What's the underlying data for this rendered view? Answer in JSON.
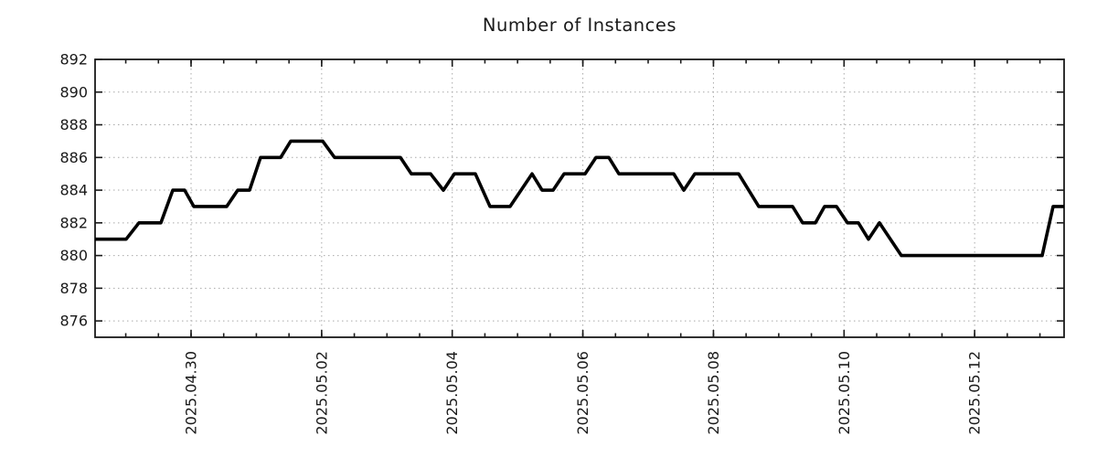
{
  "page": {
    "title": "Number of Instances"
  },
  "chart_data": {
    "type": "line",
    "title": "Number of Instances",
    "grid": "dotted",
    "legend": "none",
    "x_axis": {
      "unit": "date",
      "domain_days": [
        0,
        14.84
      ],
      "major_ticks": [
        {
          "day": 1.47,
          "label": "2025.04.30"
        },
        {
          "day": 3.47,
          "label": "2025.05.02"
        },
        {
          "day": 5.47,
          "label": "2025.05.04"
        },
        {
          "day": 7.47,
          "label": "2025.05.06"
        },
        {
          "day": 9.47,
          "label": "2025.05.08"
        },
        {
          "day": 11.47,
          "label": "2025.05.10"
        },
        {
          "day": 13.47,
          "label": "2025.05.12"
        }
      ],
      "minor_tick_step_days": 0.5,
      "minor_tick_phase_days": 0.47
    },
    "y_axis": {
      "domain": [
        875,
        892
      ],
      "ticks": [
        876,
        878,
        880,
        882,
        884,
        886,
        888,
        890,
        892
      ]
    },
    "series": [
      {
        "name": "Number of Instances",
        "color": "#000000",
        "points": [
          [
            0.0,
            881
          ],
          [
            0.476,
            881
          ],
          [
            0.672,
            882
          ],
          [
            1.008,
            882
          ],
          [
            1.19,
            884
          ],
          [
            1.372,
            884
          ],
          [
            1.512,
            883
          ],
          [
            2.016,
            883
          ],
          [
            2.184,
            884
          ],
          [
            2.366,
            884
          ],
          [
            2.534,
            886
          ],
          [
            2.842,
            886
          ],
          [
            2.996,
            887
          ],
          [
            3.486,
            887
          ],
          [
            3.668,
            886
          ],
          [
            4.676,
            886
          ],
          [
            4.844,
            885
          ],
          [
            5.138,
            885
          ],
          [
            5.334,
            884
          ],
          [
            5.502,
            885
          ],
          [
            5.824,
            885
          ],
          [
            6.048,
            883
          ],
          [
            6.356,
            883
          ],
          [
            6.692,
            885
          ],
          [
            6.846,
            884
          ],
          [
            7.014,
            884
          ],
          [
            7.182,
            885
          ],
          [
            7.504,
            885
          ],
          [
            7.672,
            886
          ],
          [
            7.868,
            886
          ],
          [
            8.022,
            885
          ],
          [
            8.862,
            885
          ],
          [
            9.016,
            884
          ],
          [
            9.184,
            885
          ],
          [
            9.856,
            885
          ],
          [
            10.164,
            883
          ],
          [
            10.682,
            883
          ],
          [
            10.836,
            882
          ],
          [
            11.032,
            882
          ],
          [
            11.172,
            883
          ],
          [
            11.354,
            883
          ],
          [
            11.522,
            882
          ],
          [
            11.69,
            882
          ],
          [
            11.844,
            881
          ],
          [
            12.012,
            882
          ],
          [
            12.348,
            880
          ],
          [
            14.504,
            880
          ],
          [
            14.672,
            883
          ],
          [
            14.84,
            883
          ]
        ]
      }
    ]
  },
  "style": {
    "background": "#ffffff",
    "axis_color": "#1a1a1a",
    "grid_color": "#a9a9a9",
    "label_color": "#1a1a1a",
    "line_color": "#000000"
  }
}
